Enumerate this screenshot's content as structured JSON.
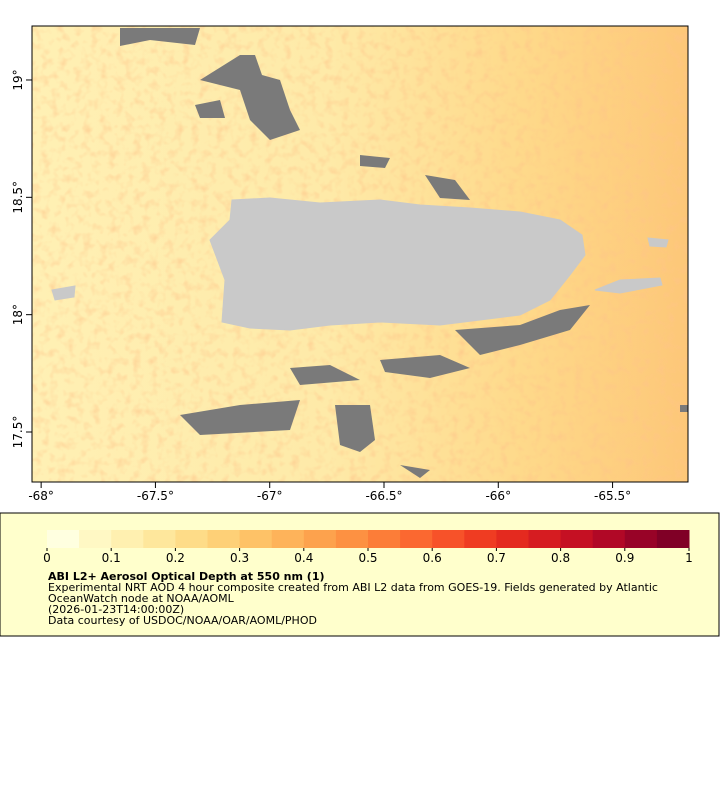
{
  "map": {
    "xlim": [
      -68.04,
      -65.17
    ],
    "ylim": [
      17.287,
      19.23
    ],
    "xticks": [
      {
        "value": -68,
        "label": "-68°"
      },
      {
        "value": -67.5,
        "label": "-67.5°"
      },
      {
        "value": -67,
        "label": "-67°"
      },
      {
        "value": -66.5,
        "label": "-66.5°"
      },
      {
        "value": -66,
        "label": "-66°"
      },
      {
        "value": -65.5,
        "label": "-65.5°"
      }
    ],
    "yticks": [
      {
        "value": 17.5,
        "label": "17.5°"
      },
      {
        "value": 18,
        "label": "18°"
      },
      {
        "value": 18.5,
        "label": "18.5°"
      },
      {
        "value": 19,
        "label": "19°"
      }
    ]
  },
  "colorbar": {
    "range": [
      0,
      1
    ],
    "ticks": [
      0,
      0.1,
      0.2,
      0.3,
      0.4,
      0.5,
      0.6,
      0.7,
      0.8,
      0.9,
      1
    ],
    "colors": [
      "#ffffe0",
      "#fff8c4",
      "#fff0b0",
      "#fee79c",
      "#fedc88",
      "#fed077",
      "#fec267",
      "#feb35a",
      "#fda24d",
      "#fd9142",
      "#fc7d38",
      "#fb6830",
      "#f75229",
      "#ef3c22",
      "#e42a1f",
      "#d61c21",
      "#c51023",
      "#b10826",
      "#980327",
      "#800026"
    ]
  },
  "caption": {
    "title": "ABI L2+ Aerosol Optical Depth at 550 nm (1)",
    "lines": [
      "Experimental NRT AOD 4 hour composite created from ABI L2 data from GOES-19. Fields generated by Atlantic",
      "OceanWatch node at NOAA/AOML",
      "(2026-01-23T14:00:00Z)",
      "Data courtesy of USDOC/NOAA/OAR/AOML/PHOD"
    ]
  }
}
